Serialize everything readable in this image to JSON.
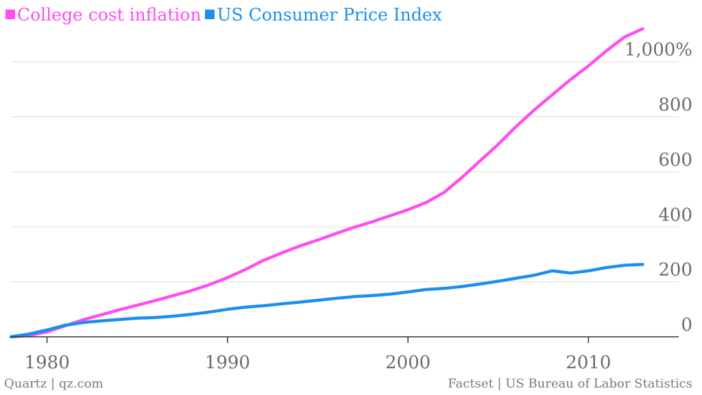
{
  "chart_data": {
    "type": "line",
    "title": "",
    "xlabel": "",
    "ylabel": "",
    "xlim": [
      1978,
      2015
    ],
    "ylim": [
      0,
      1125
    ],
    "y_ticks": [
      {
        "value": 0,
        "label": "0"
      },
      {
        "value": 200,
        "label": "200"
      },
      {
        "value": 400,
        "label": "400"
      },
      {
        "value": 600,
        "label": "600"
      },
      {
        "value": 800,
        "label": "800"
      },
      {
        "value": 1000,
        "label": "1,000%"
      }
    ],
    "x_ticks": [
      {
        "value": 1980,
        "label": "1980"
      },
      {
        "value": 1990,
        "label": "1990"
      },
      {
        "value": 2000,
        "label": "2000"
      },
      {
        "value": 2010,
        "label": "2010"
      }
    ],
    "grid": true,
    "legend_position": "top-left",
    "series": [
      {
        "name": "College cost inflation",
        "color": "#ff4df0",
        "points": [
          [
            1978,
            0
          ],
          [
            1979,
            5
          ],
          [
            1980,
            18
          ],
          [
            1981,
            40
          ],
          [
            1982,
            62
          ],
          [
            1983,
            80
          ],
          [
            1984,
            98
          ],
          [
            1985,
            115
          ],
          [
            1986,
            132
          ],
          [
            1987,
            150
          ],
          [
            1988,
            168
          ],
          [
            1989,
            190
          ],
          [
            1990,
            215
          ],
          [
            1991,
            245
          ],
          [
            1992,
            278
          ],
          [
            1993,
            305
          ],
          [
            1994,
            330
          ],
          [
            1995,
            352
          ],
          [
            1996,
            375
          ],
          [
            1997,
            398
          ],
          [
            1998,
            418
          ],
          [
            1999,
            440
          ],
          [
            2000,
            462
          ],
          [
            2001,
            488
          ],
          [
            2002,
            525
          ],
          [
            2003,
            580
          ],
          [
            2004,
            640
          ],
          [
            2005,
            700
          ],
          [
            2006,
            765
          ],
          [
            2007,
            825
          ],
          [
            2008,
            880
          ],
          [
            2009,
            935
          ],
          [
            2010,
            985
          ],
          [
            2011,
            1040
          ],
          [
            2012,
            1090
          ],
          [
            2013,
            1120
          ]
        ]
      },
      {
        "name": "US Consumer Price Index",
        "color": "#1a8ff0",
        "points": [
          [
            1978,
            0
          ],
          [
            1979,
            10
          ],
          [
            1980,
            25
          ],
          [
            1981,
            42
          ],
          [
            1982,
            52
          ],
          [
            1983,
            58
          ],
          [
            1984,
            63
          ],
          [
            1985,
            68
          ],
          [
            1986,
            70
          ],
          [
            1987,
            75
          ],
          [
            1988,
            82
          ],
          [
            1989,
            90
          ],
          [
            1990,
            100
          ],
          [
            1991,
            108
          ],
          [
            1992,
            113
          ],
          [
            1993,
            120
          ],
          [
            1994,
            126
          ],
          [
            1995,
            133
          ],
          [
            1996,
            140
          ],
          [
            1997,
            146
          ],
          [
            1998,
            150
          ],
          [
            1999,
            155
          ],
          [
            2000,
            163
          ],
          [
            2001,
            172
          ],
          [
            2002,
            176
          ],
          [
            2003,
            183
          ],
          [
            2004,
            192
          ],
          [
            2005,
            202
          ],
          [
            2006,
            213
          ],
          [
            2007,
            224
          ],
          [
            2008,
            240
          ],
          [
            2009,
            232
          ],
          [
            2010,
            240
          ],
          [
            2011,
            252
          ],
          [
            2012,
            260
          ],
          [
            2013,
            263
          ]
        ]
      }
    ]
  },
  "footer": {
    "credit_left": "Quartz | qz.com",
    "credit_right": "Factset | US Bureau of Labor Statistics"
  }
}
